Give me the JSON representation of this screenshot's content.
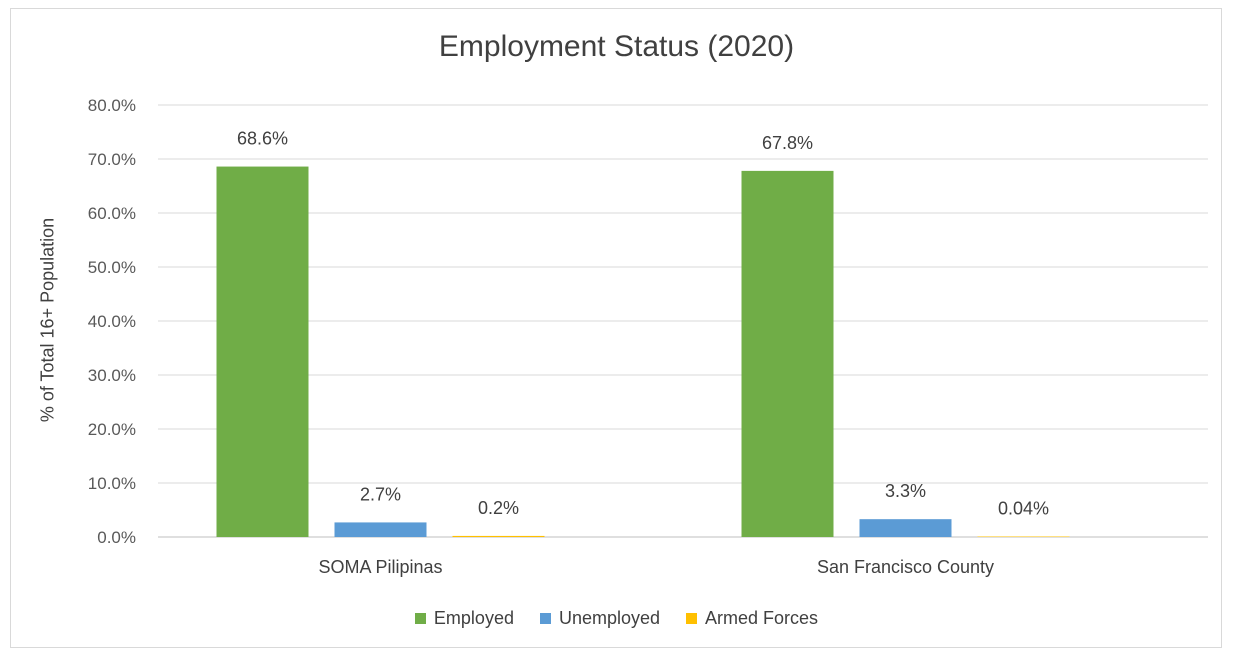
{
  "chart_data": {
    "type": "bar",
    "title": "Employment Status (2020)",
    "ylabel": "% of Total 16+ Population",
    "xlabel": "",
    "ylim": [
      0,
      80
    ],
    "yticks": [
      "0.0%",
      "10.0%",
      "20.0%",
      "30.0%",
      "40.0%",
      "50.0%",
      "60.0%",
      "70.0%",
      "80.0%"
    ],
    "grid": true,
    "legend_position": "bottom",
    "categories": [
      "SOMA Pilipinas",
      "San Francisco County"
    ],
    "series": [
      {
        "name": "Employed",
        "color": "#70ad47",
        "values": [
          68.6,
          67.8
        ],
        "labels": [
          "68.6%",
          "67.8%"
        ]
      },
      {
        "name": "Unemployed",
        "color": "#5b9bd5",
        "values": [
          2.7,
          3.3
        ],
        "labels": [
          "2.7%",
          "3.3%"
        ]
      },
      {
        "name": "Armed Forces",
        "color": "#ffc000",
        "values": [
          0.2,
          0.04
        ],
        "labels": [
          "0.2%",
          "0.04%"
        ]
      }
    ]
  }
}
